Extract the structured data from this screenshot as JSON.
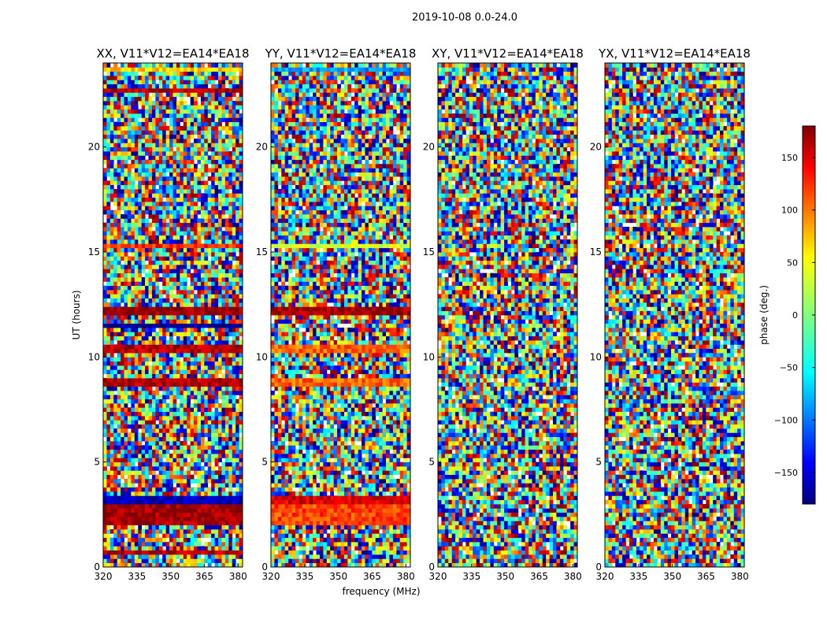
{
  "figure": {
    "suptitle": "2019-10-08 0.0-24.0"
  },
  "chart_data": {
    "type": "heatmap",
    "xlabel": "frequency (MHz)",
    "ylabel": "UT (hours)",
    "xlim": [
      320,
      382
    ],
    "ylim": [
      0,
      24
    ],
    "x_ticks": [
      320,
      335,
      350,
      365,
      380
    ],
    "y_ticks": [
      0,
      5,
      10,
      15,
      20
    ],
    "panels": [
      {
        "title": "XX, V11*V12=EA14*EA18",
        "bands": [
          {
            "from": 0.55,
            "to": 0.75,
            "value": 160
          },
          {
            "from": 2.0,
            "to": 2.9,
            "value": 170
          },
          {
            "from": 3.0,
            "to": 3.35,
            "value": -160
          },
          {
            "from": 8.7,
            "to": 8.95,
            "value": 165
          },
          {
            "from": 10.3,
            "to": 10.55,
            "value": 160
          },
          {
            "from": 11.4,
            "to": 11.6,
            "value": -175
          },
          {
            "from": 12.0,
            "to": 12.4,
            "value": 175
          },
          {
            "from": 15.2,
            "to": 15.35,
            "value": 120
          },
          {
            "from": 22.6,
            "to": 22.75,
            "value": 160
          },
          {
            "from": 23.6,
            "to": 23.8,
            "value": 60
          }
        ]
      },
      {
        "title": "YY, V11*V12=EA14*EA18",
        "bands": [
          {
            "from": 2.0,
            "to": 2.9,
            "value": 110
          },
          {
            "from": 3.0,
            "to": 3.35,
            "value": 150
          },
          {
            "from": 8.7,
            "to": 8.95,
            "value": 100
          },
          {
            "from": 10.3,
            "to": 10.55,
            "value": 100
          },
          {
            "from": 12.0,
            "to": 12.4,
            "value": 170
          },
          {
            "from": 15.2,
            "to": 15.35,
            "value": 30
          },
          {
            "from": 23.6,
            "to": 23.8,
            "value": -80
          }
        ]
      },
      {
        "title": "XY, V11*V12=EA14*EA18",
        "bands": []
      },
      {
        "title": "YX, V11*V12=EA14*EA18",
        "bands": []
      }
    ],
    "colorbar": {
      "label": "phase (deg.)",
      "range": [
        -180,
        180
      ],
      "ticks": [
        -150,
        -100,
        -50,
        0,
        50,
        100,
        150
      ],
      "colormap": "jet"
    }
  }
}
